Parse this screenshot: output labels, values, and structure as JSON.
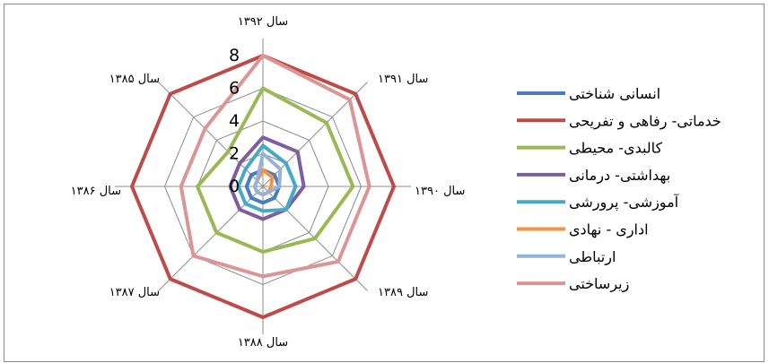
{
  "chart_data": {
    "type": "radar",
    "axes": [
      "سال ۱۳۹۲",
      "سال ۱۳۹۱",
      "سال ۱۳۹۰",
      "سال ۱۳۸۹",
      "سال ۱۳۸۸",
      "سال ۱۳۸۷",
      "سال ۱۳۸۶",
      "سال ۱۳۸۵"
    ],
    "rmax": 8,
    "ticks": [
      0,
      2,
      4,
      6,
      8
    ],
    "tick_labels": [
      "0",
      "2",
      "4",
      "6",
      "8"
    ],
    "legend_position": "right",
    "series": [
      {
        "name": "انسانی شناختی",
        "color": "#4a7ebb",
        "values": [
          1,
          1,
          1,
          1,
          1,
          1,
          1,
          1
        ]
      },
      {
        "name": "خدماتی- رفاهی و تفریحی",
        "color": "#be4b48",
        "values": [
          8,
          8,
          8,
          8,
          8,
          8,
          8,
          8
        ]
      },
      {
        "name": "کالبدی- محیطی",
        "color": "#98b954",
        "values": [
          6,
          5.5,
          5.5,
          4.5,
          4,
          4,
          4,
          3
        ]
      },
      {
        "name": "بهداشتی- درمانی",
        "color": "#7d5fa0",
        "values": [
          3,
          3,
          2.5,
          2,
          2,
          2,
          2,
          2
        ]
      },
      {
        "name": "آموزشی- پرورشی",
        "color": "#46aac5",
        "values": [
          2.5,
          2,
          2,
          2,
          1.5,
          1.5,
          1.5,
          1.5
        ]
      },
      {
        "name": "اداری - نهادی",
        "color": "#f69240",
        "values": [
          1,
          0.8,
          0.5,
          0.5,
          0.5,
          0.5,
          0.5,
          0.5
        ]
      },
      {
        "name": "ارتباطی",
        "color": "#95b3d7",
        "values": [
          2,
          1.5,
          1,
          0.5,
          0.5,
          0.5,
          0.5,
          0.5
        ]
      },
      {
        "name": "زیرساختی",
        "color": "#d99694",
        "values": [
          8,
          7.5,
          6.5,
          6.5,
          5.5,
          6,
          5,
          5
        ]
      }
    ]
  }
}
